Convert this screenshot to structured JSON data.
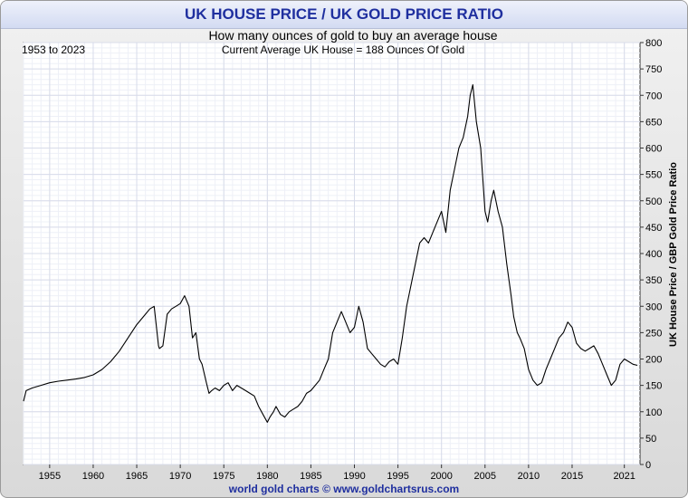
{
  "chart_data": {
    "type": "line",
    "title": "UK HOUSE PRICE / UK GOLD PRICE RATIO",
    "subtitle": "How many ounces of gold to buy an average house",
    "period_label": "1953 to 2023",
    "annotation": "Current Average UK House = 188 Ounces Of Gold",
    "ylabel": "UK House Price / GBP Gold Price Ratio",
    "xlabel": "",
    "footer": "world gold charts © www.goldchartsrus.com",
    "xlim": [
      1952,
      2022.8
    ],
    "ylim": [
      0,
      800
    ],
    "x_ticks": [
      1955,
      1960,
      1965,
      1970,
      1975,
      1980,
      1985,
      1990,
      1995,
      2000,
      2005,
      2010,
      2015,
      2021
    ],
    "y_ticks": [
      0,
      50,
      100,
      150,
      200,
      250,
      300,
      350,
      400,
      450,
      500,
      550,
      600,
      650,
      700,
      750,
      800
    ],
    "grid": true,
    "series": [
      {
        "x": [
          1952.0,
          1952.3,
          1953.0,
          1954.0,
          1955.0,
          1956.0,
          1957.0,
          1958.0,
          1959.0,
          1960.0,
          1961.0,
          1962.0,
          1963.0,
          1964.0,
          1965.0,
          1966.0,
          1966.5,
          1967.0,
          1967.5,
          1967.6,
          1968.0,
          1968.5,
          1969.0,
          1969.5,
          1970.0,
          1970.5,
          1971.0,
          1971.4,
          1971.8,
          1972.2,
          1972.5,
          1973.0,
          1973.3,
          1973.6,
          1974.0,
          1974.5,
          1975.0,
          1975.5,
          1976.0,
          1976.5,
          1977.0,
          1977.5,
          1978.0,
          1978.5,
          1979.0,
          1979.5,
          1980.0,
          1980.3,
          1980.7,
          1981.0,
          1981.5,
          1982.0,
          1982.5,
          1983.0,
          1983.5,
          1984.0,
          1984.5,
          1985.0,
          1985.5,
          1986.0,
          1986.5,
          1987.0,
          1987.5,
          1988.0,
          1988.5,
          1989.0,
          1989.5,
          1990.0,
          1990.5,
          1991.0,
          1991.5,
          1992.0,
          1992.5,
          1993.0,
          1993.5,
          1994.0,
          1994.5,
          1995.0,
          1995.5,
          1996.0,
          1996.5,
          1997.0,
          1997.5,
          1998.0,
          1998.5,
          1999.0,
          1999.5,
          2000.0,
          2000.5,
          2001.0,
          2001.5,
          2002.0,
          2002.5,
          2003.0,
          2003.3,
          2003.6,
          2004.0,
          2004.5,
          2005.0,
          2005.3,
          2005.7,
          2006.0,
          2006.5,
          2007.0,
          2007.5,
          2008.0,
          2008.3,
          2008.7,
          2009.0,
          2009.5,
          2010.0,
          2010.5,
          2011.0,
          2011.5,
          2012.0,
          2012.5,
          2013.0,
          2013.5,
          2014.0,
          2014.5,
          2015.0,
          2015.5,
          2016.0,
          2016.5,
          2017.0,
          2017.5,
          2018.0,
          2018.5,
          2019.0,
          2019.5,
          2020.0,
          2020.5,
          2021.0,
          2021.5,
          2022.0,
          2022.5
        ],
        "values": [
          120,
          140,
          145,
          150,
          155,
          158,
          160,
          162,
          165,
          170,
          180,
          195,
          215,
          240,
          265,
          285,
          295,
          300,
          225,
          220,
          225,
          285,
          295,
          300,
          305,
          320,
          300,
          240,
          250,
          200,
          190,
          155,
          135,
          140,
          145,
          140,
          150,
          155,
          140,
          150,
          145,
          140,
          135,
          130,
          110,
          95,
          80,
          90,
          100,
          110,
          95,
          90,
          100,
          105,
          110,
          120,
          135,
          140,
          150,
          160,
          180,
          200,
          250,
          270,
          290,
          270,
          250,
          260,
          300,
          270,
          220,
          210,
          200,
          190,
          185,
          195,
          200,
          190,
          240,
          300,
          340,
          380,
          420,
          430,
          420,
          440,
          460,
          480,
          440,
          520,
          560,
          600,
          620,
          660,
          700,
          720,
          650,
          600,
          480,
          460,
          500,
          520,
          480,
          450,
          380,
          320,
          280,
          250,
          240,
          220,
          180,
          160,
          150,
          155,
          180,
          200,
          220,
          240,
          250,
          270,
          260,
          230,
          220,
          215,
          220,
          225,
          210,
          190,
          170,
          150,
          160,
          190,
          200,
          195,
          190,
          188
        ]
      }
    ]
  }
}
